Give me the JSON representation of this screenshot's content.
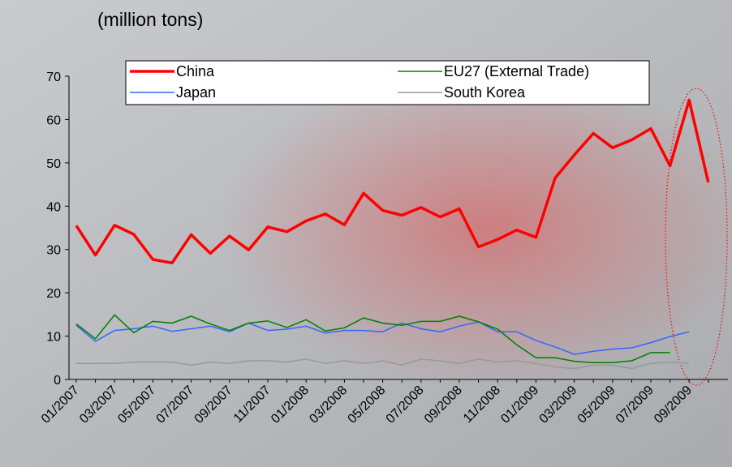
{
  "chart_data": {
    "type": "line",
    "title": "(million tons)",
    "categories": [
      "01/2007",
      null,
      "03/2007",
      null,
      "05/2007",
      null,
      "07/2007",
      null,
      "09/2007",
      null,
      "11/2007",
      null,
      "01/2008",
      null,
      "03/2008",
      null,
      "05/2008",
      null,
      "07/2008",
      null,
      "09/2008",
      null,
      "11/2008",
      null,
      "01/2009",
      null,
      "03/2009",
      null,
      "05/2009",
      null,
      "07/2009",
      null,
      "09/2009",
      null
    ],
    "series": [
      {
        "name": "China",
        "color": "#ff0000",
        "values": [
          35.5,
          28.7,
          35.6,
          33.5,
          27.7,
          26.9,
          33.4,
          29.1,
          33.1,
          29.9,
          35.2,
          34.1,
          36.6,
          38.2,
          35.7,
          43.0,
          39.0,
          37.9,
          39.7,
          37.5,
          39.4,
          30.6,
          32.3,
          34.5,
          32.8,
          46.5,
          51.8,
          56.8,
          53.5,
          55.3,
          57.9,
          49.3,
          64.5,
          45.5
        ]
      },
      {
        "name": "EU27 (External Trade)",
        "color": "#008000",
        "values": [
          12.8,
          9.4,
          14.9,
          10.8,
          13.4,
          13.0,
          14.6,
          12.8,
          11.3,
          13.0,
          13.5,
          12.0,
          13.8,
          11.2,
          11.9,
          14.2,
          13.0,
          12.5,
          13.4,
          13.4,
          14.6,
          13.3,
          11.6,
          8.0,
          5.0,
          5.0,
          4.2,
          3.9,
          3.9,
          4.3,
          6.2,
          6.2,
          null,
          null
        ]
      },
      {
        "name": "Japan",
        "color": "#3366ff",
        "values": [
          12.5,
          8.8,
          11.3,
          11.7,
          12.3,
          11.1,
          11.7,
          12.3,
          11.0,
          13.0,
          11.3,
          11.6,
          12.3,
          10.7,
          11.3,
          11.3,
          11.0,
          13.0,
          11.7,
          11.0,
          12.3,
          13.3,
          11.0,
          11.0,
          9.0,
          7.5,
          5.8,
          6.5,
          7.0,
          7.3,
          8.5,
          9.9,
          11.0,
          null
        ]
      },
      {
        "name": "South Korea",
        "color": "#999999",
        "values": [
          3.7,
          3.7,
          3.7,
          4.0,
          4.0,
          4.0,
          3.3,
          4.0,
          3.7,
          4.3,
          4.3,
          4.0,
          4.7,
          3.7,
          4.3,
          3.7,
          4.3,
          3.3,
          4.7,
          4.3,
          3.7,
          4.7,
          4.0,
          4.3,
          3.7,
          2.9,
          2.5,
          3.3,
          3.3,
          2.5,
          3.7,
          4.0,
          3.7,
          null
        ]
      }
    ],
    "ylim": [
      0,
      70
    ],
    "yticks": [
      0,
      10,
      20,
      30,
      40,
      50,
      60,
      70
    ]
  }
}
